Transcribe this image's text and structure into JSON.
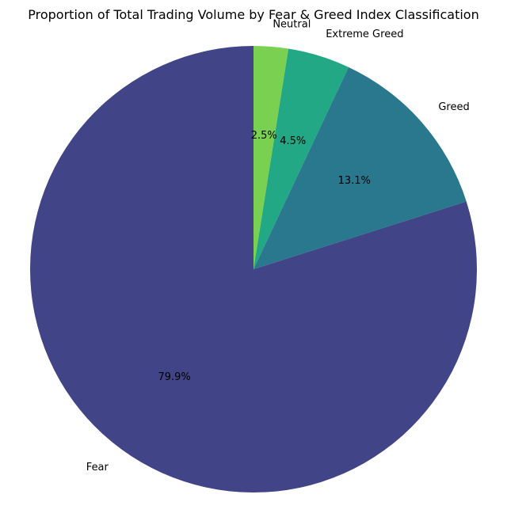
{
  "chart_data": {
    "type": "pie",
    "title": "Proportion of Total Trading Volume by Fear & Greed Index Classification",
    "start_angle_deg": 90,
    "direction": "clockwise",
    "slices": [
      {
        "label": "Neutral",
        "value": 2.5,
        "pct_label": "2.5%",
        "color": "#7ad151"
      },
      {
        "label": "Extreme Greed",
        "value": 4.5,
        "pct_label": "4.5%",
        "color": "#22a884"
      },
      {
        "label": "Greed",
        "value": 13.1,
        "pct_label": "13.1%",
        "color": "#2a788e"
      },
      {
        "label": "Fear",
        "value": 79.9,
        "pct_label": "79.9%",
        "color": "#414487"
      }
    ]
  }
}
